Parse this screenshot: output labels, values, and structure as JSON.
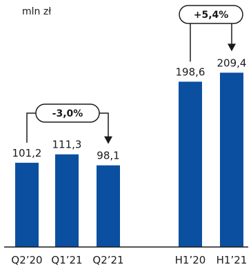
{
  "unit_label": "mln zł",
  "colors": {
    "bar": "#0B4FA0",
    "text": "#1a1a1a",
    "axis": "#1a1a1a"
  },
  "chart_data": {
    "type": "bar",
    "categories": [
      "Q2'20",
      "Q1'21",
      "Q2'21",
      "H1'20",
      "H1'21"
    ],
    "values": [
      101.2,
      111.3,
      98.1,
      198.6,
      209.4
    ],
    "value_labels": [
      "101,2",
      "111,3",
      "98,1",
      "198,6",
      "209,4"
    ],
    "category_labels": [
      "Q2’20",
      "Q1’21",
      "Q2’21",
      "H1’20",
      "H1’21"
    ],
    "annotations": [
      {
        "text": "-3,0%",
        "from_category": "Q2'20",
        "to_category": "Q2'21"
      },
      {
        "text": "+5,4%",
        "from_category": "H1'20",
        "to_category": "H1'21"
      }
    ],
    "ylim": [
      0,
      225
    ],
    "grid": false,
    "legend": "none"
  }
}
